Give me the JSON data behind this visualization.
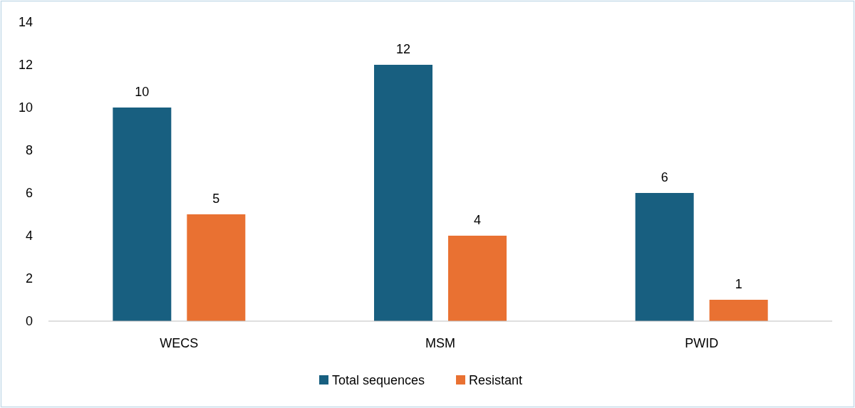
{
  "chart_data": {
    "type": "bar",
    "categories": [
      "WECS",
      "MSM",
      "PWID"
    ],
    "series": [
      {
        "name": "Total sequences",
        "color": "#185f80",
        "values": [
          10,
          12,
          6
        ]
      },
      {
        "name": "Resistant",
        "color": "#e97132",
        "values": [
          5,
          4,
          1
        ]
      }
    ],
    "ylim": [
      0,
      14
    ],
    "yticks": [
      0,
      2,
      4,
      6,
      8,
      10,
      12,
      14
    ],
    "data_labels": true,
    "legend": "bottom"
  }
}
